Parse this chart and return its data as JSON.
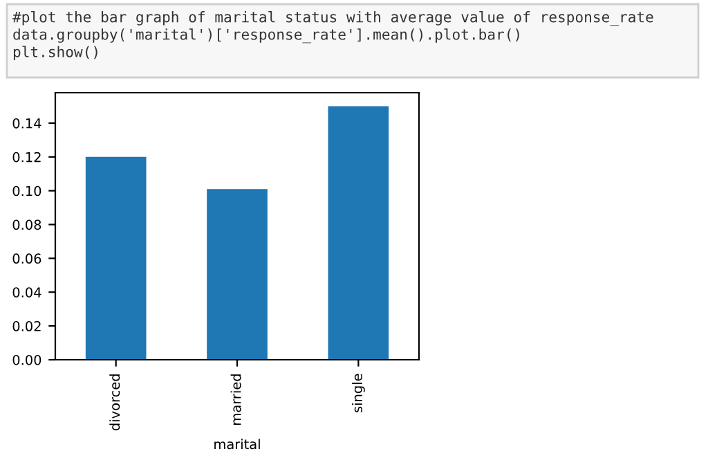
{
  "chart_data": {
    "type": "bar",
    "annotations": [
      "#plot the bar graph of marital status with average value of response_rate\ndata.groupby('marital')['response_rate'].mean().plot.bar()\nplt.show()"
    ],
    "categories": [
      "divorced",
      "married",
      "single"
    ],
    "values": [
      0.12,
      0.101,
      0.15
    ],
    "color": "#1f77b4",
    "xlabel": "marital",
    "ylim": [
      0,
      0.158
    ],
    "yticks": [
      {
        "value": 0,
        "label": "0.00"
      },
      {
        "value": 0.02,
        "label": "0.02"
      },
      {
        "value": 0.04,
        "label": "0.04"
      },
      {
        "value": 0.06,
        "label": "0.06"
      },
      {
        "value": 0.08,
        "label": "0.08"
      },
      {
        "value": 0.1,
        "label": "0.10"
      },
      {
        "value": 0.12,
        "label": "0.12"
      },
      {
        "value": 0.14,
        "label": "0.14"
      }
    ],
    "grid": false
  }
}
